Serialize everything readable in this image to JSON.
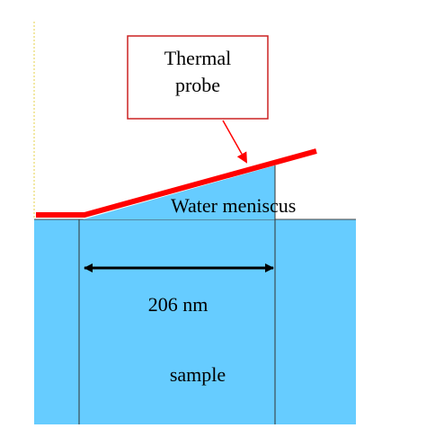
{
  "labels": {
    "probe_line1": "Thermal",
    "probe_line2": "probe",
    "meniscus": "Water meniscus",
    "width": "206 nm",
    "sample": "sample"
  }
}
